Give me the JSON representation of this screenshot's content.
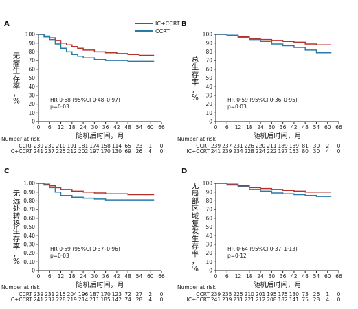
{
  "legend": {
    "series_names": [
      "IC+CCRT",
      "CCRT"
    ],
    "colors": [
      "#b5332a",
      "#2a7aa8"
    ]
  },
  "chart_data": [
    {
      "type": "line",
      "panel": "A",
      "ylabel": "无瘤生存率，%",
      "xlabel": "随机后时间，月",
      "x_ticks": [
        0,
        6,
        12,
        18,
        24,
        30,
        36,
        42,
        48,
        54,
        60,
        66
      ],
      "y_ticks": [
        "100",
        "90",
        "80",
        "70",
        "60",
        "50",
        "40",
        "30",
        "20",
        "10",
        "0"
      ],
      "ylim": [
        0,
        100
      ],
      "xlim": [
        0,
        66
      ],
      "annotation": [
        "HR 0·68 (95%CI 0·48–0·97)",
        "p=0·03"
      ],
      "series": [
        {
          "name": "IC+CCRT",
          "x": [
            0,
            3,
            6,
            9,
            12,
            15,
            18,
            21,
            24,
            30,
            36,
            42,
            48,
            54,
            60,
            62
          ],
          "y": [
            100,
            98,
            96,
            93,
            90,
            88,
            86,
            84,
            82,
            80,
            79,
            78,
            77,
            76,
            76,
            76
          ]
        },
        {
          "name": "CCRT",
          "x": [
            0,
            3,
            6,
            9,
            12,
            15,
            18,
            21,
            24,
            30,
            36,
            42,
            48,
            54,
            60,
            62
          ],
          "y": [
            100,
            97,
            94,
            89,
            84,
            80,
            77,
            75,
            73,
            71,
            70,
            70,
            69,
            69,
            69,
            69
          ]
        }
      ],
      "risk_table": {
        "header": "Number at risk",
        "rows": [
          {
            "label": "CCRT",
            "values": [
              "239",
              "230",
              "210",
              "191",
              "181",
              "174",
              "158",
              "114",
              "65",
              "23",
              "1",
              "0"
            ]
          },
          {
            "label": "IC+CCRT",
            "values": [
              "241",
              "237",
              "225",
              "212",
              "202",
              "197",
              "170",
              "130",
              "69",
              "26",
              "4",
              "0"
            ]
          }
        ]
      }
    },
    {
      "type": "line",
      "panel": "B",
      "ylabel": "总生存率，%",
      "xlabel": "随机后时间，月",
      "x_ticks": [
        0,
        6,
        12,
        18,
        24,
        30,
        36,
        42,
        48,
        54,
        60,
        66
      ],
      "y_ticks": [
        "100",
        "90",
        "80",
        "70",
        "60",
        "50",
        "40",
        "30",
        "20",
        "10",
        "0"
      ],
      "ylim": [
        0,
        100
      ],
      "xlim": [
        0,
        66
      ],
      "annotation": [
        "HR 0·59 (95%CI 0·36–0·95)",
        "p=0·03"
      ],
      "series": [
        {
          "name": "IC+CCRT",
          "x": [
            0,
            6,
            12,
            18,
            24,
            30,
            36,
            42,
            48,
            54,
            60,
            62
          ],
          "y": [
            100,
            99,
            97,
            95,
            94,
            93,
            92,
            91,
            89,
            88,
            88,
            88
          ]
        },
        {
          "name": "CCRT",
          "x": [
            0,
            6,
            12,
            18,
            24,
            30,
            36,
            42,
            48,
            54,
            60,
            62
          ],
          "y": [
            100,
            99,
            96,
            94,
            92,
            89,
            87,
            85,
            82,
            79,
            79,
            79
          ]
        }
      ],
      "risk_table": {
        "header": "Number at risk",
        "rows": [
          {
            "label": "CCRT",
            "values": [
              "239",
              "237",
              "231",
              "226",
              "220",
              "211",
              "189",
              "139",
              "81",
              "30",
              "2",
              "0"
            ]
          },
          {
            "label": "IC+CCRT",
            "values": [
              "241",
              "239",
              "234",
              "228",
              "224",
              "222",
              "197",
              "153",
              "80",
              "30",
              "4",
              "0"
            ]
          }
        ]
      }
    },
    {
      "type": "line",
      "panel": "C",
      "ylabel": "无远处转移生存率，%",
      "xlabel": "随机后时间，月",
      "x_ticks": [
        0,
        6,
        12,
        18,
        24,
        30,
        36,
        42,
        48,
        54,
        60,
        66
      ],
      "y_ticks": [
        "1.00",
        "0.90",
        "0.80",
        "0.70",
        "0.60",
        "0.50",
        "0.40",
        "0.30",
        "0.20",
        "0.10",
        "0"
      ],
      "ylim": [
        0,
        1
      ],
      "xlim": [
        0,
        66
      ],
      "annotation": [
        "HR 0·59 (95%CI 0·37–0·96)",
        "p=0·03"
      ],
      "series": [
        {
          "name": "IC+CCRT",
          "x": [
            0,
            3,
            6,
            9,
            12,
            18,
            24,
            30,
            36,
            42,
            48,
            54,
            60,
            62
          ],
          "y": [
            1.0,
            0.99,
            0.97,
            0.95,
            0.93,
            0.91,
            0.9,
            0.89,
            0.88,
            0.88,
            0.87,
            0.87,
            0.87,
            0.87
          ]
        },
        {
          "name": "CCRT",
          "x": [
            0,
            3,
            6,
            9,
            12,
            18,
            24,
            30,
            36,
            42,
            48,
            54,
            60,
            62
          ],
          "y": [
            1.0,
            0.98,
            0.95,
            0.9,
            0.86,
            0.84,
            0.83,
            0.82,
            0.81,
            0.81,
            0.81,
            0.81,
            0.81,
            0.81
          ]
        }
      ],
      "risk_table": {
        "header": "Number at risk",
        "rows": [
          {
            "label": "CCRT",
            "values": [
              "239",
              "231",
              "215",
              "204",
              "196",
              "187",
              "170",
              "123",
              "72",
              "27",
              "2",
              "0"
            ]
          },
          {
            "label": "IC+CCRT",
            "values": [
              "241",
              "237",
              "228",
              "219",
              "214",
              "211",
              "185",
              "142",
              "74",
              "28",
              "4",
              "0"
            ]
          }
        ]
      }
    },
    {
      "type": "line",
      "panel": "D",
      "ylabel": "无局部区域复发生存率，%",
      "xlabel": "随机后时间，月",
      "x_ticks": [
        0,
        6,
        12,
        18,
        24,
        30,
        36,
        42,
        48,
        54,
        60,
        66
      ],
      "y_ticks": [
        "100",
        "90",
        "80",
        "70",
        "60",
        "50",
        "40",
        "30",
        "20",
        "10",
        "0"
      ],
      "ylim": [
        0,
        100
      ],
      "xlim": [
        0,
        66
      ],
      "annotation": [
        "HR 0·64 (95%CI 0·37–1·13)",
        "p=0·12"
      ],
      "series": [
        {
          "name": "IC+CCRT",
          "x": [
            0,
            6,
            12,
            18,
            24,
            30,
            36,
            42,
            48,
            54,
            60,
            62
          ],
          "y": [
            100,
            99,
            97,
            95,
            94,
            93,
            92,
            91,
            90,
            90,
            90,
            90
          ]
        },
        {
          "name": "CCRT",
          "x": [
            0,
            6,
            12,
            18,
            24,
            30,
            36,
            42,
            48,
            54,
            60,
            62
          ],
          "y": [
            100,
            98,
            96,
            93,
            91,
            89,
            88,
            87,
            86,
            85,
            85,
            85
          ]
        }
      ],
      "risk_table": {
        "header": "Number at risk",
        "rows": [
          {
            "label": "CCRT",
            "values": [
              "239",
              "235",
              "225",
              "210",
              "201",
              "195",
              "175",
              "130",
              "73",
              "26",
              "1",
              "0"
            ]
          },
          {
            "label": "IC+CCRT",
            "values": [
              "241",
              "239",
              "231",
              "221",
              "212",
              "208",
              "182",
              "141",
              "75",
              "28",
              "4",
              "0"
            ]
          }
        ]
      }
    }
  ]
}
